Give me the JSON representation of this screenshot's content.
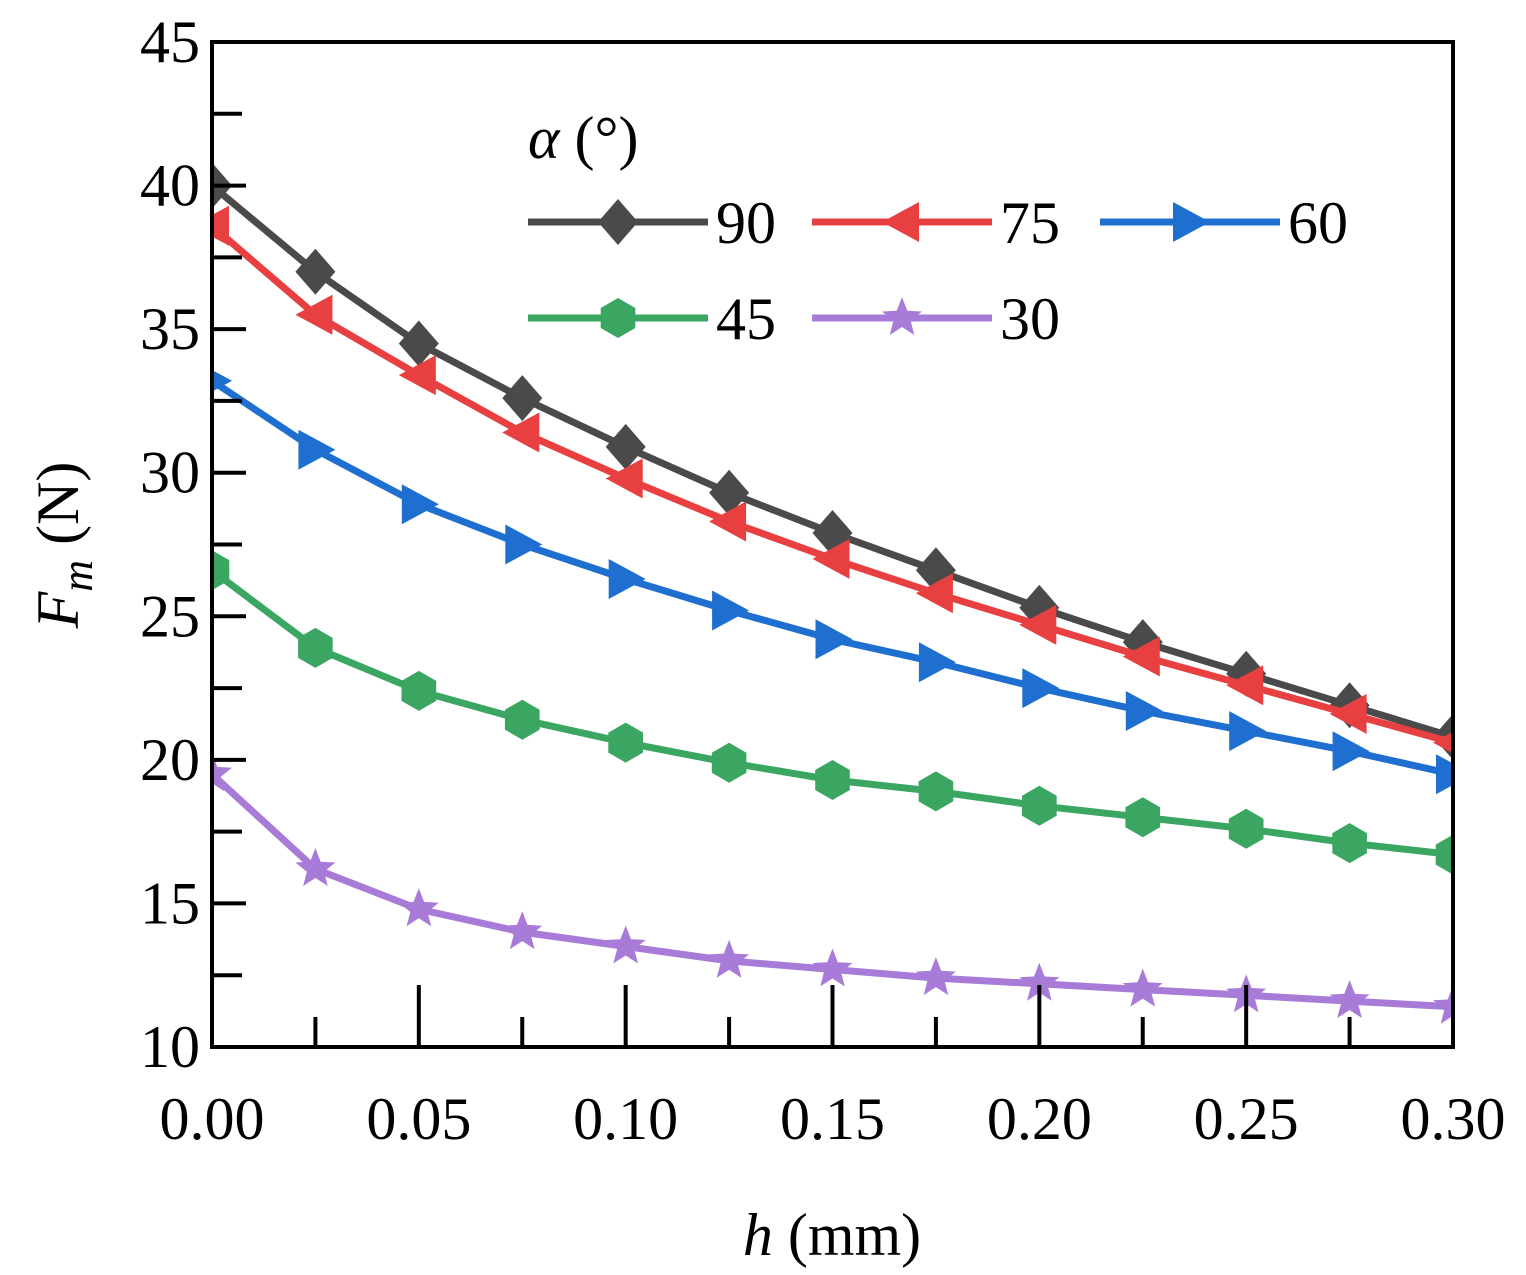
{
  "chart_data": {
    "type": "line",
    "xlabel_var": "h",
    "xlabel_unit": " (mm)",
    "ylabel_var": "F",
    "ylabel_sub": "m",
    "ylabel_unit": " (N)",
    "xlim": [
      0.0,
      0.3
    ],
    "ylim": [
      10,
      45
    ],
    "xticks": [
      "0.00",
      "0.05",
      "0.10",
      "0.15",
      "0.20",
      "0.25",
      "0.30"
    ],
    "yticks": [
      "10",
      "15",
      "20",
      "25",
      "30",
      "35",
      "40",
      "45"
    ],
    "legend_title_var": "α",
    "legend_title_unit": " (°)",
    "legend_position": "top-right",
    "x": [
      0.0,
      0.025,
      0.05,
      0.075,
      0.1,
      0.125,
      0.15,
      0.175,
      0.2,
      0.225,
      0.25,
      0.275,
      0.3
    ],
    "series": [
      {
        "name": "90",
        "color": "#4a4a4a",
        "marker": "diamond",
        "values": [
          40.0,
          37.0,
          34.5,
          32.6,
          30.9,
          29.3,
          27.9,
          26.6,
          25.3,
          24.1,
          23.0,
          21.9,
          20.8
        ]
      },
      {
        "name": "75",
        "color": "#e84040",
        "marker": "triangle-left",
        "values": [
          38.6,
          35.5,
          33.4,
          31.4,
          29.8,
          28.3,
          27.0,
          25.8,
          24.7,
          23.6,
          22.6,
          21.6,
          20.6
        ]
      },
      {
        "name": "60",
        "color": "#1f6fd1",
        "marker": "triangle-right",
        "values": [
          33.2,
          30.8,
          28.9,
          27.5,
          26.3,
          25.2,
          24.2,
          23.4,
          22.5,
          21.7,
          21.0,
          20.3,
          19.5
        ]
      },
      {
        "name": "45",
        "color": "#3aa662",
        "marker": "hexagon",
        "values": [
          26.6,
          23.9,
          22.4,
          21.4,
          20.6,
          19.9,
          19.3,
          18.9,
          18.4,
          18.0,
          17.6,
          17.1,
          16.7
        ]
      },
      {
        "name": "30",
        "color": "#a97bd8",
        "marker": "star",
        "values": [
          19.5,
          16.2,
          14.8,
          14.0,
          13.5,
          13.0,
          12.7,
          12.4,
          12.2,
          12.0,
          11.8,
          11.6,
          11.4
        ]
      }
    ]
  }
}
